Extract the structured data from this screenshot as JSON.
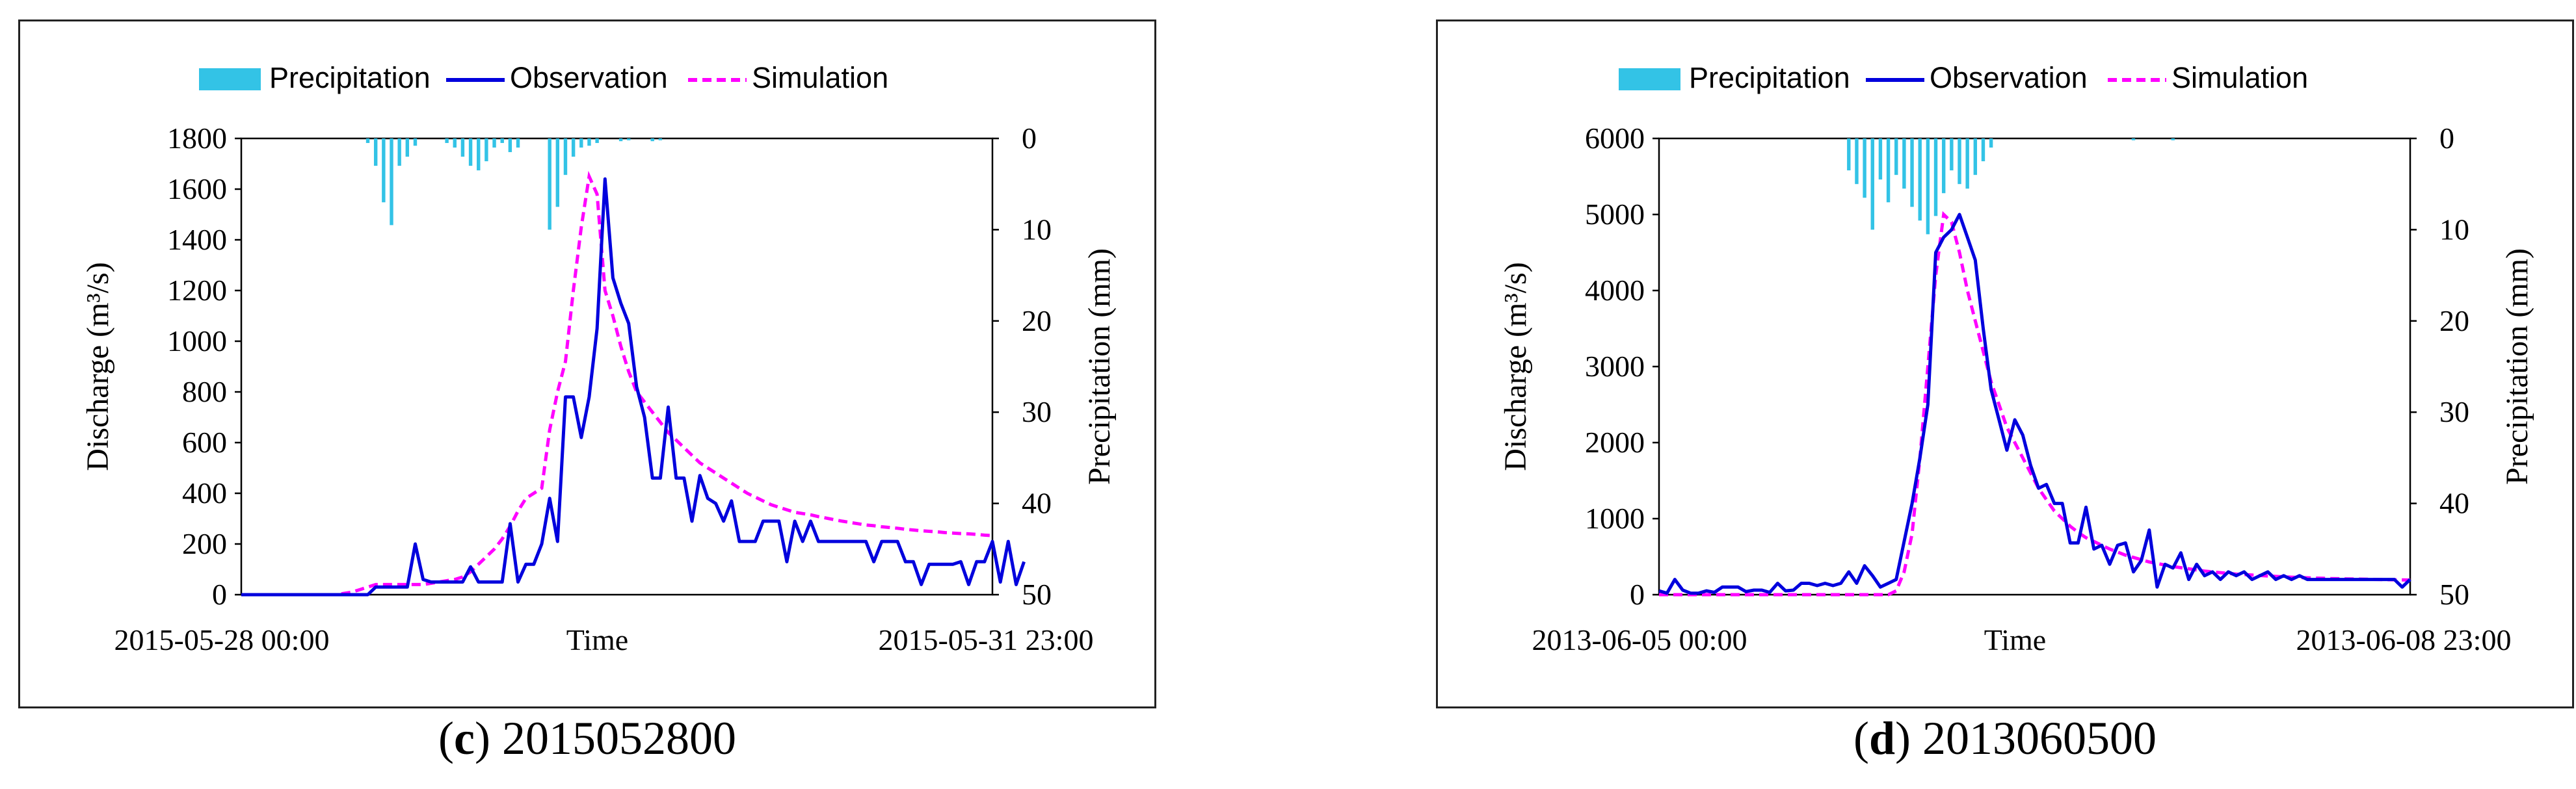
{
  "colors": {
    "precipitation": "#33c3e6",
    "observation": "#0000dd",
    "simulation": "#ff00ff"
  },
  "chart_data": [
    {
      "type": "line",
      "caption_letter": "c",
      "caption_text": "2015052800",
      "legend": [
        "Precipitation",
        "Observation",
        "Simulation"
      ],
      "xlabel": "Time",
      "x_start_label": "2015-05-28 00:00",
      "x_end_label": "2015-05-31 23:00",
      "ylabel": "Discharge (m³/s)",
      "ylabel_right": "Precipitation (mm)",
      "ylim": [
        0,
        1800
      ],
      "yticks": [
        "0",
        "200",
        "400",
        "600",
        "800",
        "1000",
        "1200",
        "1400",
        "1600",
        "1800"
      ],
      "ylim_right": [
        0,
        50
      ],
      "yticks_right": [
        "0",
        "10",
        "20",
        "30",
        "40",
        "50"
      ],
      "n_steps": 96,
      "series": [
        {
          "name": "Observation",
          "values": [
            0,
            0,
            0,
            0,
            0,
            0,
            0,
            0,
            0,
            0,
            0,
            0,
            0,
            0,
            0,
            0,
            0,
            30,
            30,
            30,
            30,
            30,
            200,
            60,
            50,
            50,
            50,
            50,
            50,
            110,
            50,
            50,
            50,
            50,
            280,
            50,
            120,
            120,
            200,
            380,
            210,
            780,
            780,
            620,
            780,
            1050,
            1640,
            1250,
            1150,
            1070,
            820,
            700,
            460,
            460,
            740,
            460,
            460,
            290,
            470,
            380,
            360,
            290,
            370,
            210,
            210,
            210,
            290,
            290,
            290,
            130,
            290,
            210,
            290,
            210,
            210,
            210,
            210,
            210,
            210,
            210,
            130,
            210,
            210,
            210,
            130,
            130,
            40,
            120,
            120,
            120,
            120,
            130,
            40,
            130,
            130,
            210,
            50,
            210,
            40,
            130
          ]
        },
        {
          "name": "Simulation",
          "values": [
            0,
            0,
            0,
            0,
            0,
            0,
            0,
            0,
            0,
            0,
            0,
            0,
            0,
            5,
            10,
            20,
            30,
            40,
            40,
            40,
            40,
            40,
            40,
            40,
            45,
            50,
            55,
            60,
            70,
            90,
            120,
            150,
            180,
            220,
            270,
            330,
            380,
            400,
            420,
            650,
            800,
            920,
            1200,
            1450,
            1650,
            1580,
            1200,
            1100,
            980,
            880,
            800,
            760,
            720,
            680,
            640,
            610,
            580,
            550,
            520,
            500,
            480,
            460,
            440,
            420,
            400,
            385,
            370,
            355,
            345,
            335,
            325,
            320,
            315,
            308,
            302,
            296,
            290,
            285,
            280,
            275,
            272,
            268,
            265,
            262,
            258,
            255,
            252,
            250,
            248,
            245,
            243,
            241,
            240,
            238,
            235,
            233
          ]
        },
        {
          "name": "Precipitation",
          "values": [
            0,
            0,
            0,
            0,
            0,
            0,
            0,
            0,
            0,
            0,
            0,
            0,
            0,
            0,
            0,
            0,
            0,
            0,
            0,
            0,
            0,
            0,
            0,
            0,
            0,
            0,
            0,
            0,
            0,
            0,
            0,
            0,
            0,
            0,
            0,
            0,
            0,
            0,
            0,
            0,
            0,
            0,
            0,
            0,
            0,
            0,
            0,
            0,
            0,
            0,
            0,
            0,
            0,
            0,
            0,
            0,
            0,
            0,
            0,
            0,
            0,
            0,
            0,
            0,
            0,
            0,
            0,
            0,
            0,
            0,
            0,
            0,
            0,
            0,
            0,
            0,
            0,
            0,
            0,
            0,
            0,
            0,
            0,
            0,
            0,
            0,
            0,
            0,
            0,
            0,
            0,
            0,
            0,
            0,
            0,
            0
          ]
        }
      ],
      "precip_bars": [
        {
          "t": 16,
          "mm": 0.5
        },
        {
          "t": 17,
          "mm": 3
        },
        {
          "t": 18,
          "mm": 7
        },
        {
          "t": 19,
          "mm": 9.5
        },
        {
          "t": 20,
          "mm": 3
        },
        {
          "t": 21,
          "mm": 2
        },
        {
          "t": 22,
          "mm": 0.8
        },
        {
          "t": 26,
          "mm": 0.5
        },
        {
          "t": 27,
          "mm": 1
        },
        {
          "t": 28,
          "mm": 2
        },
        {
          "t": 29,
          "mm": 3
        },
        {
          "t": 30,
          "mm": 3.5
        },
        {
          "t": 31,
          "mm": 2.5
        },
        {
          "t": 32,
          "mm": 1
        },
        {
          "t": 33,
          "mm": 0.5
        },
        {
          "t": 34,
          "mm": 1.5
        },
        {
          "t": 35,
          "mm": 1
        },
        {
          "t": 39,
          "mm": 10
        },
        {
          "t": 40,
          "mm": 7.5
        },
        {
          "t": 41,
          "mm": 4
        },
        {
          "t": 42,
          "mm": 2
        },
        {
          "t": 43,
          "mm": 1
        },
        {
          "t": 44,
          "mm": 0.8
        },
        {
          "t": 45,
          "mm": 0.5
        },
        {
          "t": 48,
          "mm": 0.3
        },
        {
          "t": 49,
          "mm": 0.2
        },
        {
          "t": 52,
          "mm": 0.3
        },
        {
          "t": 53,
          "mm": 0.2
        }
      ]
    },
    {
      "type": "line",
      "caption_letter": "d",
      "caption_text": "2013060500",
      "legend": [
        "Precipitation",
        "Observation",
        "Simulation"
      ],
      "xlabel": "Time",
      "x_start_label": "2013-06-05 00:00",
      "x_end_label": "2013-06-08 23:00",
      "ylabel": "Discharge (m³/s)",
      "ylabel_right": "Precipitation (mm)",
      "ylim": [
        0,
        6000
      ],
      "yticks": [
        "0",
        "1000",
        "2000",
        "3000",
        "4000",
        "5000",
        "6000"
      ],
      "ylim_right": [
        0,
        50
      ],
      "yticks_right": [
        "0",
        "10",
        "20",
        "30",
        "40",
        "50"
      ],
      "n_steps": 96,
      "series": [
        {
          "name": "Observation",
          "values": [
            50,
            20,
            200,
            60,
            20,
            20,
            50,
            30,
            100,
            100,
            100,
            40,
            60,
            60,
            30,
            150,
            50,
            60,
            150,
            150,
            120,
            150,
            120,
            150,
            300,
            150,
            380,
            250,
            100,
            150,
            200,
            700,
            1200,
            1800,
            2500,
            4500,
            4700,
            4800,
            5000,
            4700,
            4400,
            3500,
            2700,
            2300,
            1900,
            2300,
            2100,
            1700,
            1400,
            1450,
            1200,
            1200,
            680,
            680,
            1150,
            600,
            650,
            400,
            650,
            680,
            300,
            450,
            850,
            100,
            400,
            350,
            550,
            200,
            400,
            250,
            300,
            200,
            300,
            250,
            300,
            200,
            250,
            300,
            200,
            250,
            200,
            250,
            200,
            200,
            200,
            200,
            200,
            200,
            200,
            200,
            200,
            200,
            200,
            200,
            100,
            200
          ]
        },
        {
          "name": "Simulation",
          "values": [
            0,
            0,
            0,
            0,
            0,
            0,
            0,
            0,
            0,
            0,
            0,
            0,
            0,
            0,
            0,
            0,
            0,
            0,
            0,
            0,
            0,
            0,
            0,
            0,
            0,
            0,
            0,
            0,
            0,
            0,
            50,
            300,
            800,
            1800,
            3000,
            4200,
            5000,
            4900,
            4500,
            4000,
            3600,
            3200,
            2800,
            2500,
            2200,
            2000,
            1800,
            1600,
            1400,
            1250,
            1100,
            1000,
            900,
            820,
            750,
            700,
            650,
            600,
            560,
            520,
            490,
            460,
            430,
            410,
            390,
            370,
            355,
            340,
            325,
            310,
            300,
            290,
            280,
            270,
            265,
            258,
            252,
            246,
            240,
            235,
            230,
            226,
            222,
            218,
            215,
            212,
            210,
            208,
            206,
            204,
            202,
            200,
            198,
            196,
            194,
            192
          ]
        },
        {
          "name": "Precipitation",
          "values": [
            0,
            0,
            0,
            0,
            0,
            0,
            0,
            0,
            0,
            0,
            0,
            0,
            0,
            0,
            0,
            0,
            0,
            0,
            0,
            0,
            0,
            0,
            0,
            0,
            0,
            0,
            0,
            0,
            0,
            0,
            0,
            0,
            0,
            0,
            0,
            0,
            0,
            0,
            0,
            0,
            0,
            0,
            0,
            0,
            0,
            0,
            0,
            0,
            0,
            0,
            0,
            0,
            0,
            0,
            0,
            0,
            0,
            0,
            0,
            0,
            0,
            0,
            0,
            0,
            0,
            0,
            0,
            0,
            0,
            0,
            0,
            0,
            0,
            0,
            0,
            0,
            0,
            0,
            0,
            0,
            0,
            0,
            0,
            0,
            0,
            0,
            0,
            0,
            0,
            0,
            0,
            0,
            0,
            0,
            0,
            0
          ]
        }
      ],
      "precip_bars": [
        {
          "t": 24,
          "mm": 3.5
        },
        {
          "t": 25,
          "mm": 5
        },
        {
          "t": 26,
          "mm": 6.5
        },
        {
          "t": 27,
          "mm": 10
        },
        {
          "t": 28,
          "mm": 4.5
        },
        {
          "t": 29,
          "mm": 7
        },
        {
          "t": 30,
          "mm": 4
        },
        {
          "t": 31,
          "mm": 5.5
        },
        {
          "t": 32,
          "mm": 7.5
        },
        {
          "t": 33,
          "mm": 9
        },
        {
          "t": 34,
          "mm": 10.5
        },
        {
          "t": 35,
          "mm": 8.5
        },
        {
          "t": 36,
          "mm": 6
        },
        {
          "t": 37,
          "mm": 3.5
        },
        {
          "t": 38,
          "mm": 5
        },
        {
          "t": 39,
          "mm": 5.5
        },
        {
          "t": 40,
          "mm": 4
        },
        {
          "t": 41,
          "mm": 2.5
        },
        {
          "t": 42,
          "mm": 1
        },
        {
          "t": 60,
          "mm": 0.2
        },
        {
          "t": 65,
          "mm": 0.2
        }
      ]
    }
  ]
}
